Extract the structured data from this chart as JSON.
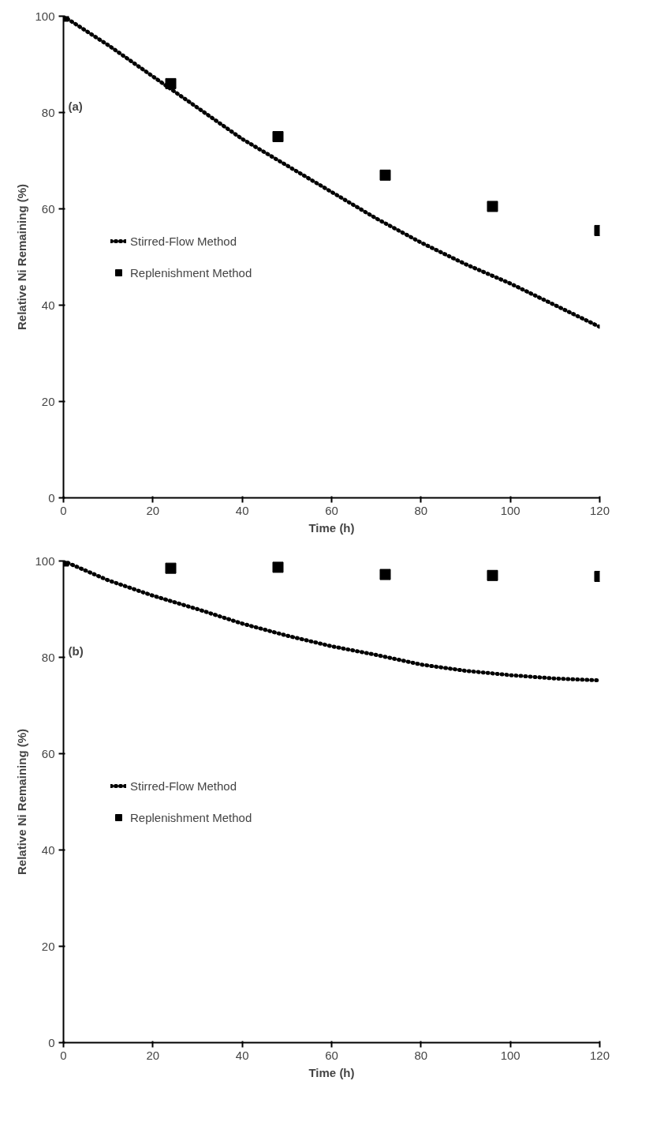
{
  "chart_data": [
    {
      "type": "scatter",
      "title": "(a)",
      "xlabel": "Time (h)",
      "ylabel": "Relative Ni Remaining (%)",
      "xlim": [
        0,
        120
      ],
      "ylim": [
        0,
        100
      ],
      "xticks": [
        0,
        20,
        40,
        60,
        80,
        100,
        120
      ],
      "yticks": [
        0,
        20,
        40,
        60,
        80,
        100
      ],
      "grid": false,
      "legend": "left",
      "series": [
        {
          "name": "Stirred-Flow Method",
          "type": "line",
          "line_style": "dotted",
          "color": "#000000",
          "x": [
            0,
            10,
            20,
            30,
            40,
            50,
            60,
            70,
            80,
            90,
            100,
            110,
            120
          ],
          "values": [
            100,
            94,
            87.5,
            81,
            74.5,
            69,
            63.5,
            58,
            53,
            48.5,
            44.5,
            40,
            35.5
          ]
        },
        {
          "name": "Replenishment Method",
          "marker": "square",
          "color": "#000000",
          "x": [
            0,
            24,
            48,
            72,
            96,
            120
          ],
          "values": [
            100,
            86,
            75,
            67,
            60.5,
            55.5
          ]
        }
      ]
    },
    {
      "type": "scatter",
      "title": "(b)",
      "xlabel": "Time (h)",
      "ylabel": "Relative Ni Remaining (%)",
      "xlim": [
        0,
        120
      ],
      "ylim": [
        0,
        100
      ],
      "xticks": [
        0,
        20,
        40,
        60,
        80,
        100,
        120
      ],
      "yticks": [
        0,
        20,
        40,
        60,
        80,
        100
      ],
      "grid": false,
      "legend": "left",
      "series": [
        {
          "name": "Stirred-Flow Method",
          "type": "line",
          "line_style": "dotted",
          "color": "#000000",
          "x": [
            0,
            10,
            20,
            30,
            40,
            50,
            60,
            70,
            80,
            90,
            100,
            110,
            120
          ],
          "values": [
            100,
            96,
            92.8,
            90,
            87,
            84.5,
            82.3,
            80.5,
            78.5,
            77.2,
            76.3,
            75.6,
            75.2
          ]
        },
        {
          "name": "Replenishment Method",
          "marker": "square",
          "color": "#000000",
          "x": [
            0,
            24,
            48,
            72,
            96,
            120
          ],
          "values": [
            100,
            98.5,
            98.7,
            97.2,
            97,
            96.8
          ]
        }
      ]
    }
  ]
}
